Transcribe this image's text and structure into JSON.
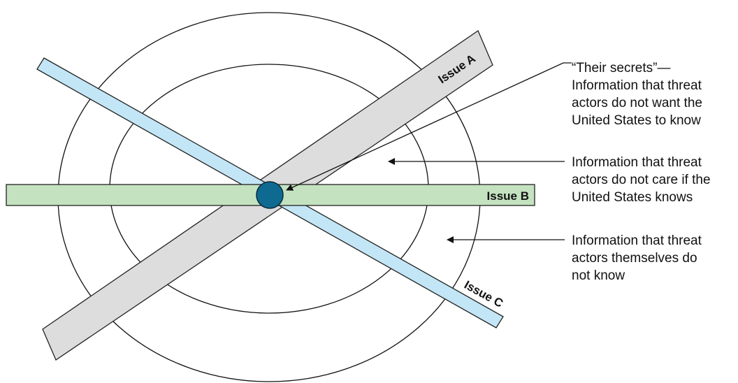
{
  "colors": {
    "ring_stroke": "#111111",
    "issue_a_fill": "#dddddd",
    "issue_b_fill": "#c4e2c0",
    "issue_c_fill": "#c3e6f6",
    "bar_stroke": "#222222",
    "center_fill": "#0f6a92",
    "center_stroke": "#0a2a3a",
    "arrow": "#111111"
  },
  "issues": {
    "a": "Issue A",
    "b": "Issue B",
    "c": "Issue C"
  },
  "annotations": {
    "secrets": [
      "“Their secrets”—",
      "Information that threat",
      "actors do not want the",
      "United States to know"
    ],
    "dont_care": [
      "Information that threat",
      "actors do not care if the",
      "United States knows"
    ],
    "unknown": [
      "Information that threat",
      "actors themselves do",
      "not know"
    ]
  }
}
